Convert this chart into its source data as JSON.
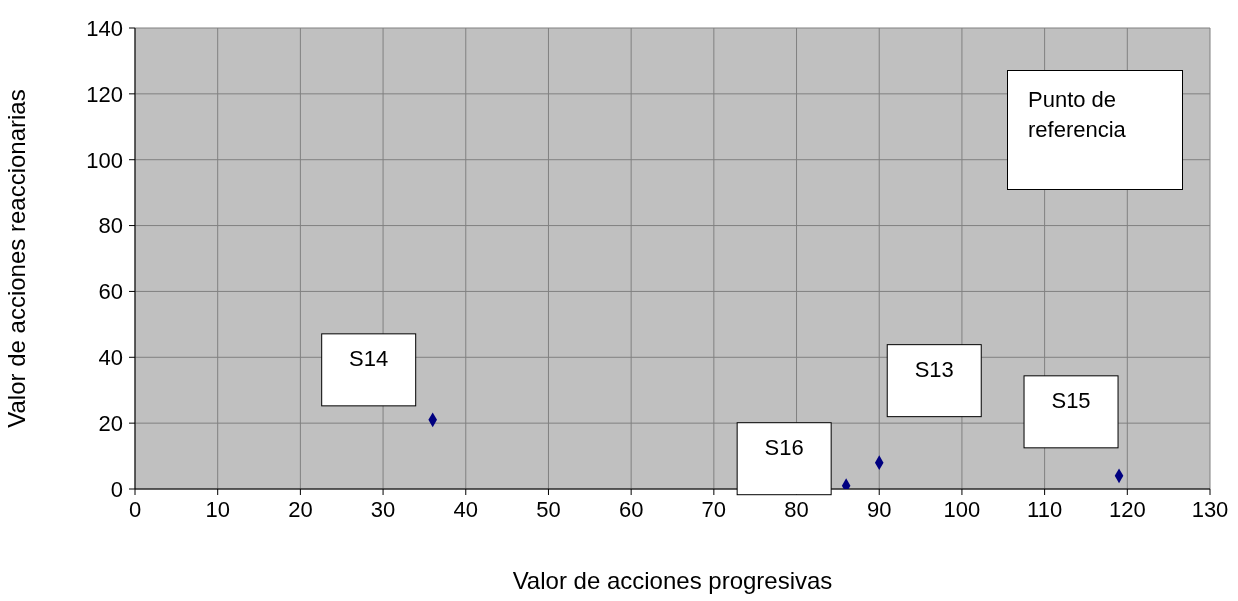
{
  "chart_data": {
    "type": "scatter",
    "xlabel": "Valor de acciones progresivas",
    "ylabel": "Valor de acciones reaccionarias",
    "x": [
      36,
      86,
      90,
      119
    ],
    "series": [
      {
        "color": "#000080",
        "values": [
          21,
          1,
          8,
          4
        ]
      }
    ],
    "xlim": [
      0,
      130
    ],
    "xticks": [
      0,
      10,
      20,
      30,
      40,
      50,
      60,
      70,
      80,
      90,
      100,
      110,
      120,
      130
    ],
    "ylim": [
      0,
      140
    ],
    "yticks": [
      0,
      20,
      40,
      60,
      80,
      100,
      120,
      140
    ],
    "grid": true,
    "legend": false,
    "marker": "diamond",
    "annotations": [
      "S14",
      "S16",
      "S13",
      "S15",
      "Punto de referencia"
    ]
  }
}
